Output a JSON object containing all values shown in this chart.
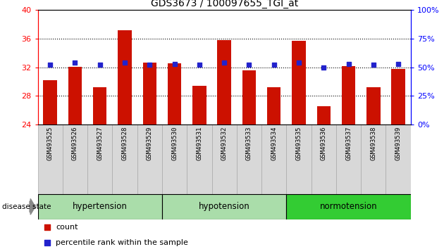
{
  "title": "GDS3673 / 100097655_TGI_at",
  "samples": [
    "GSM493525",
    "GSM493526",
    "GSM493527",
    "GSM493528",
    "GSM493529",
    "GSM493530",
    "GSM493531",
    "GSM493532",
    "GSM493533",
    "GSM493534",
    "GSM493535",
    "GSM493536",
    "GSM493537",
    "GSM493538",
    "GSM493539"
  ],
  "red_bar_values": [
    30.2,
    32.1,
    29.2,
    37.2,
    32.6,
    32.5,
    29.4,
    35.8,
    31.6,
    29.2,
    35.7,
    26.6,
    32.2,
    29.2,
    31.8
  ],
  "blue_square_values": [
    52,
    54,
    52,
    54,
    52,
    53,
    52,
    54,
    52,
    52,
    54,
    50,
    53,
    52,
    53
  ],
  "ylim_left": [
    24,
    40
  ],
  "ylim_right": [
    0,
    100
  ],
  "yticks_left": [
    24,
    28,
    32,
    36,
    40
  ],
  "yticks_right": [
    0,
    25,
    50,
    75,
    100
  ],
  "bar_color": "#CC1100",
  "square_color": "#2222CC",
  "groups": [
    {
      "label": "hypertension",
      "start": 0,
      "end": 5
    },
    {
      "label": "hypotension",
      "start": 5,
      "end": 10
    },
    {
      "label": "normotension",
      "start": 10,
      "end": 15
    }
  ],
  "group_colors": [
    "#aaddaa",
    "#aaddaa",
    "#33cc33"
  ],
  "legend_count_label": "count",
  "legend_pct_label": "percentile rank within the sample",
  "disease_state_label": "disease state",
  "bar_width": 0.55
}
